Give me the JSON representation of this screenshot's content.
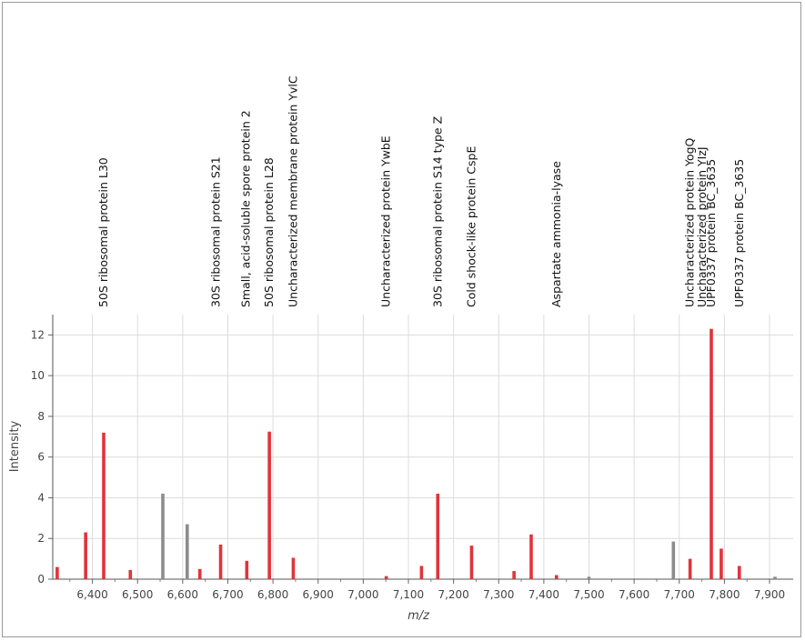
{
  "chart_data": {
    "type": "bar",
    "xlabel": "m/z",
    "ylabel": "Intensity",
    "xlim": [
      6320,
      7920
    ],
    "ylim": [
      0,
      13
    ],
    "x_ticks": [
      6400,
      6500,
      6600,
      6700,
      6800,
      6900,
      7000,
      7100,
      7200,
      7300,
      7400,
      7500,
      7600,
      7700,
      7800,
      7900
    ],
    "x_tick_labels": [
      "6,400",
      "6,500",
      "6,600",
      "6,700",
      "6,800",
      "6,900",
      "7,000",
      "7,100",
      "7,200",
      "7,300",
      "7,400",
      "7,500",
      "7,600",
      "7,700",
      "7,800",
      "7,900"
    ],
    "y_ticks": [
      0,
      2,
      4,
      6,
      8,
      10,
      12
    ],
    "y_tick_labels": [
      "0",
      "2",
      "4",
      "6",
      "8",
      "10",
      "12"
    ],
    "grid": true,
    "colors": {
      "matched": "#e0343a",
      "unmatched": "#8c8c8c"
    },
    "peaks": [
      {
        "x": 6322,
        "y": 0.6,
        "matched": true
      },
      {
        "x": 6385,
        "y": 2.3,
        "matched": true
      },
      {
        "x": 6425,
        "y": 7.2,
        "matched": true
      },
      {
        "x": 6484,
        "y": 0.45,
        "matched": true
      },
      {
        "x": 6556,
        "y": 4.2,
        "matched": false
      },
      {
        "x": 6610,
        "y": 2.7,
        "matched": false
      },
      {
        "x": 6638,
        "y": 0.5,
        "matched": true
      },
      {
        "x": 6684,
        "y": 1.7,
        "matched": true
      },
      {
        "x": 6742,
        "y": 0.9,
        "matched": true
      },
      {
        "x": 6792,
        "y": 7.25,
        "matched": true
      },
      {
        "x": 6845,
        "y": 1.05,
        "matched": true
      },
      {
        "x": 7051,
        "y": 0.15,
        "matched": true
      },
      {
        "x": 7129,
        "y": 0.65,
        "matched": true
      },
      {
        "x": 7165,
        "y": 4.2,
        "matched": true
      },
      {
        "x": 7240,
        "y": 1.65,
        "matched": true
      },
      {
        "x": 7334,
        "y": 0.4,
        "matched": true
      },
      {
        "x": 7372,
        "y": 2.2,
        "matched": true
      },
      {
        "x": 7428,
        "y": 0.2,
        "matched": true
      },
      {
        "x": 7500,
        "y": 0.12,
        "matched": false
      },
      {
        "x": 7687,
        "y": 1.85,
        "matched": false
      },
      {
        "x": 7724,
        "y": 1.0,
        "matched": true
      },
      {
        "x": 7771,
        "y": 12.3,
        "matched": true
      },
      {
        "x": 7793,
        "y": 1.5,
        "matched": true
      },
      {
        "x": 7833,
        "y": 0.65,
        "matched": true
      },
      {
        "x": 7912,
        "y": 0.12,
        "matched": false
      }
    ],
    "annotations": [
      {
        "x": 6425,
        "text": "50S ribosomal protein L30"
      },
      {
        "x": 6674,
        "text": "30S ribosomal protein S21"
      },
      {
        "x": 6740,
        "text": "Small, acid-soluble spore protein 2"
      },
      {
        "x": 6792,
        "text": "50S ribosomal protein L28"
      },
      {
        "x": 6845,
        "text": "Uncharacterized membrane protein YvlC"
      },
      {
        "x": 7051,
        "text": "Uncharacterized protein YwbE"
      },
      {
        "x": 7165,
        "text": "30S ribosomal protein S14 type Z"
      },
      {
        "x": 7240,
        "text": "Cold shock-like protein CspE"
      },
      {
        "x": 7428,
        "text": "Aspartate ammonia-lyase"
      },
      {
        "x": 7724,
        "text": "Uncharacterized protein YogQ"
      },
      {
        "x": 7751,
        "text": "Uncharacterized protein YIzJ"
      },
      {
        "x": 7771,
        "text": "UPF0337 protein BC_3635"
      },
      {
        "x": 7833,
        "text": "UPF0337 protein BC_3635"
      }
    ]
  }
}
